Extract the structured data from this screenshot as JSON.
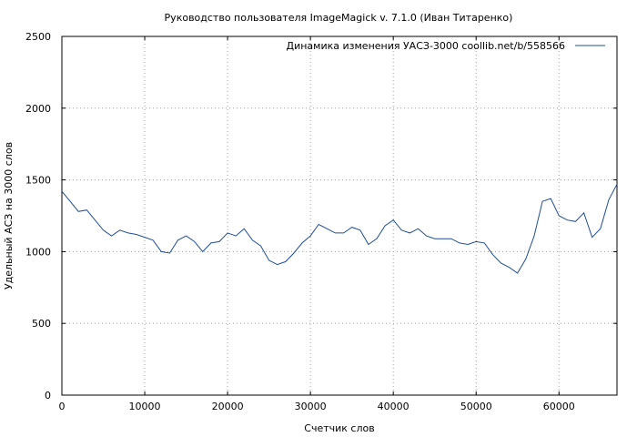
{
  "chart_data": {
    "type": "line",
    "title": "Руководство пользователя ImageMagick v. 7.1.0 (Иван Титаренко)",
    "xlabel": "Счетчик слов",
    "ylabel": "Удельный АСЗ на 3000 слов",
    "xlim": [
      0,
      67000
    ],
    "ylim": [
      0,
      2500
    ],
    "x_ticks": [
      0,
      10000,
      20000,
      30000,
      40000,
      50000,
      60000
    ],
    "y_ticks": [
      0,
      500,
      1000,
      1500,
      2000,
      2500
    ],
    "grid": true,
    "legend_position": "top-right",
    "series": [
      {
        "name": "Динамика изменения УАСЗ-3000  coollib.net/b/558566",
        "color": "#1f4e9b",
        "x": [
          0,
          1000,
          2000,
          3000,
          4000,
          5000,
          6000,
          7000,
          8000,
          9000,
          10000,
          11000,
          12000,
          13000,
          14000,
          15000,
          16000,
          17000,
          18000,
          19000,
          20000,
          21000,
          22000,
          23000,
          24000,
          25000,
          26000,
          27000,
          28000,
          29000,
          30000,
          31000,
          32000,
          33000,
          34000,
          35000,
          36000,
          37000,
          38000,
          39000,
          40000,
          41000,
          42000,
          43000,
          44000,
          45000,
          46000,
          47000,
          48000,
          49000,
          50000,
          51000,
          52000,
          53000,
          54000,
          55000,
          56000,
          57000,
          58000,
          59000,
          60000,
          61000,
          62000,
          63000,
          64000,
          65000,
          66000,
          67000
        ],
        "y": [
          1420,
          1350,
          1280,
          1290,
          1220,
          1150,
          1110,
          1150,
          1130,
          1120,
          1100,
          1080,
          1000,
          990,
          1080,
          1110,
          1070,
          1000,
          1060,
          1070,
          1130,
          1110,
          1160,
          1080,
          1040,
          940,
          910,
          930,
          990,
          1060,
          1110,
          1190,
          1160,
          1130,
          1130,
          1170,
          1150,
          1050,
          1090,
          1180,
          1220,
          1150,
          1130,
          1160,
          1110,
          1090,
          1090,
          1090,
          1060,
          1050,
          1070,
          1060,
          980,
          920,
          890,
          850,
          950,
          1110,
          1350,
          1370,
          1250,
          1220,
          1210,
          1270,
          1100,
          1160,
          1360,
          1470
        ]
      }
    ]
  }
}
